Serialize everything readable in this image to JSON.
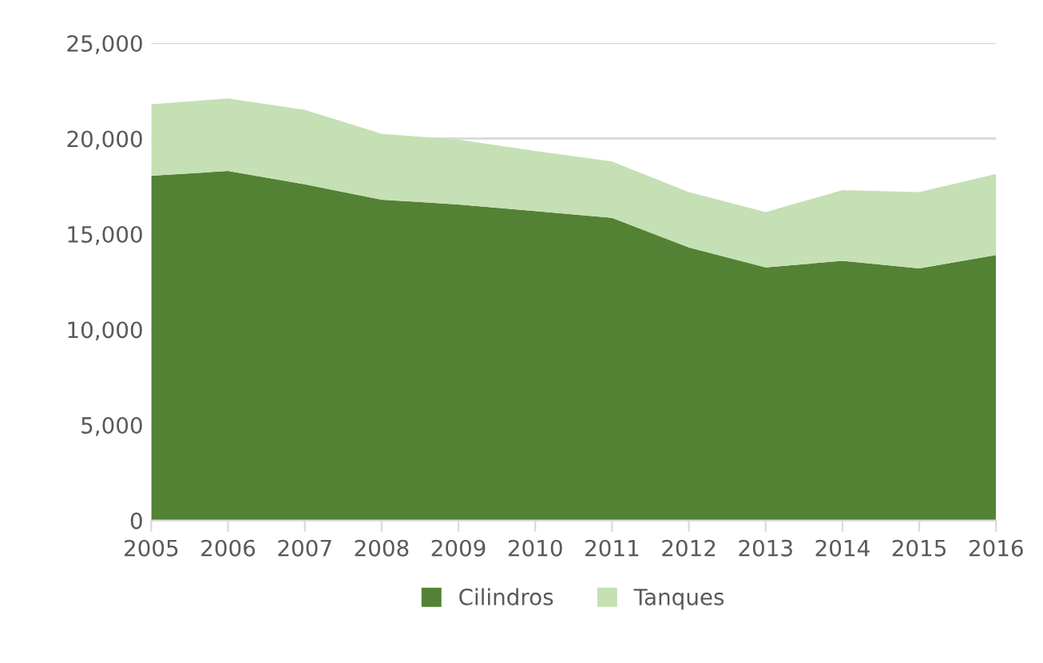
{
  "chart_data": {
    "type": "area",
    "stacked": true,
    "categories": [
      "2005",
      "2006",
      "2007",
      "2008",
      "2009",
      "2010",
      "2011",
      "2012",
      "2013",
      "2014",
      "2015",
      "2016"
    ],
    "series": [
      {
        "name": "Cilindros",
        "color": "#548235",
        "values": [
          18050,
          18300,
          17600,
          16800,
          16550,
          16200,
          15850,
          14300,
          13250,
          13600,
          13200,
          13900
        ]
      },
      {
        "name": "Tanques",
        "color": "#c5e0b4",
        "values": [
          3750,
          3800,
          3900,
          3450,
          3400,
          3150,
          2950,
          2900,
          2900,
          3700,
          4000,
          4250
        ]
      }
    ],
    "ylim": [
      0,
      25000
    ],
    "yticks": [
      {
        "value": 0,
        "label": "0"
      },
      {
        "value": 5000,
        "label": "5,000"
      },
      {
        "value": 10000,
        "label": "10,000"
      },
      {
        "value": 15000,
        "label": "15,000"
      },
      {
        "value": 20000,
        "label": "20,000"
      },
      {
        "value": 25000,
        "label": "25,000"
      }
    ],
    "grid": "y",
    "legend": "bottom"
  }
}
